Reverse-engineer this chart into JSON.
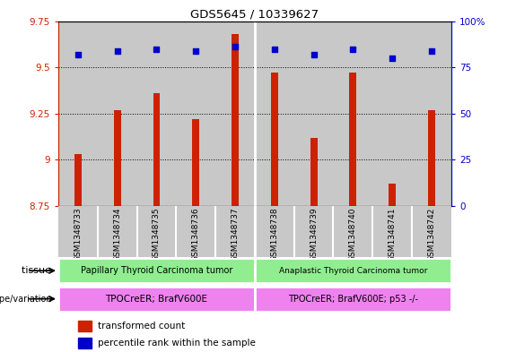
{
  "title": "GDS5645 / 10339627",
  "samples": [
    "GSM1348733",
    "GSM1348734",
    "GSM1348735",
    "GSM1348736",
    "GSM1348737",
    "GSM1348738",
    "GSM1348739",
    "GSM1348740",
    "GSM1348741",
    "GSM1348742"
  ],
  "transformed_count": [
    9.03,
    9.27,
    9.36,
    9.22,
    9.68,
    9.47,
    9.12,
    9.47,
    8.87,
    9.27
  ],
  "percentile_rank": [
    82,
    84,
    85,
    84,
    86,
    85,
    82,
    85,
    80,
    84
  ],
  "bar_color": "#cc2200",
  "dot_color": "#0000cc",
  "ylim_left": [
    8.75,
    9.75
  ],
  "ylim_right": [
    0,
    100
  ],
  "yticks_left": [
    8.75,
    9.0,
    9.25,
    9.5,
    9.75
  ],
  "yticks_right": [
    0,
    25,
    50,
    75,
    100
  ],
  "ytick_labels_left": [
    "8.75",
    "9",
    "9.25",
    "9.5",
    "9.75"
  ],
  "ytick_labels_right": [
    "0",
    "25",
    "50",
    "75",
    "100%"
  ],
  "grid_values": [
    9.0,
    9.25,
    9.5
  ],
  "tissue_group1_label": "Papillary Thyroid Carcinoma tumor",
  "tissue_group2_label": "Anaplastic Thyroid Carcinoma tumor",
  "tissue_group1_color": "#90ee90",
  "tissue_group2_color": "#90ee90",
  "genotype_group1_label": "TPOCreER; BrafV600E",
  "genotype_group2_label": "TPOCreER; BrafV600E; p53 -/-",
  "genotype_group1_color": "#ee82ee",
  "genotype_group2_color": "#ee82ee",
  "tissue_label": "tissue",
  "genotype_label": "genotype/variation",
  "legend_red_label": "transformed count",
  "legend_blue_label": "percentile rank within the sample",
  "group1_count": 5,
  "group2_count": 5,
  "bg_color_group1": "#c8c8c8",
  "bg_color_group2": "#c8c8c8",
  "bar_width": 0.18
}
